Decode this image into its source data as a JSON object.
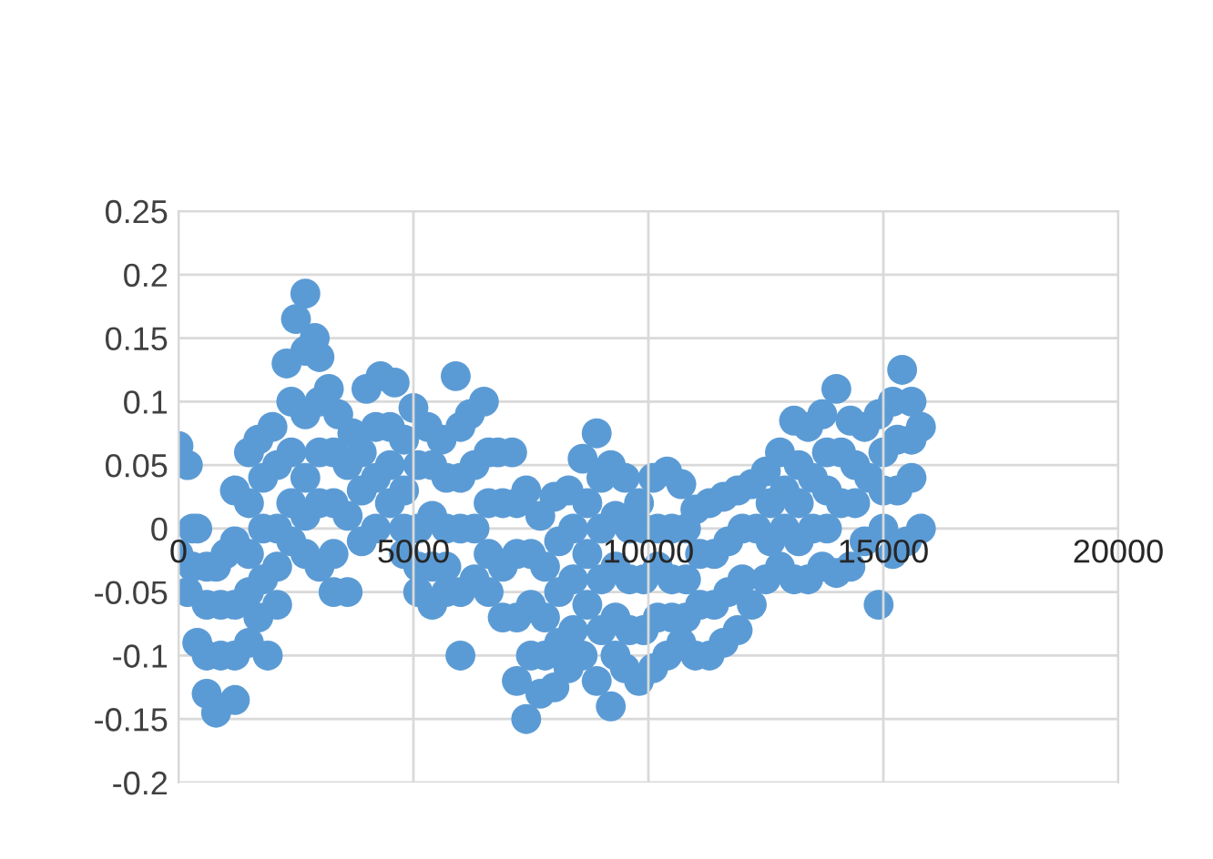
{
  "chart_data": {
    "type": "scatter",
    "xlim": [
      0,
      20000
    ],
    "xticks": [
      0,
      5000,
      10000,
      15000,
      20000
    ],
    "ylim": [
      -0.2,
      0.25
    ],
    "yticks": [
      -0.2,
      -0.15,
      -0.1,
      -0.05,
      0,
      0.05,
      0.1,
      0.15,
      0.2,
      0.25
    ],
    "grid": true,
    "marker": "circle",
    "series": [
      {
        "color": "#5b9bd5",
        "x": [
          0,
          200,
          400,
          600,
          800,
          1000,
          1200,
          1500,
          1700,
          2000,
          2300,
          2500,
          2700,
          2900,
          3000,
          3200,
          3400,
          3700,
          4000,
          4300,
          4600,
          5000,
          5300,
          5600,
          5900,
          6200,
          6500,
          6800,
          7100,
          7400,
          7700,
          8000,
          8300,
          8600,
          8900,
          9200,
          9500,
          9800,
          10100,
          10400,
          10700,
          11000,
          11300,
          11600,
          11900,
          12200,
          12500,
          12800,
          13100,
          13400,
          13700,
          14000,
          14300,
          14600,
          14900,
          15200,
          15400,
          15600,
          15800,
          0,
          200,
          400,
          600,
          800,
          1200,
          1500,
          1700,
          1900,
          2100,
          2400,
          2700,
          3000,
          3300,
          3600,
          3900,
          4200,
          4500,
          4800,
          5100,
          5400,
          5700,
          6000,
          6300,
          6600,
          6900,
          7200,
          7400,
          7700,
          8000,
          8300,
          8600,
          8900,
          9200,
          9500,
          9800,
          10100,
          10400,
          10700,
          11000,
          11300,
          11600,
          11900,
          12200,
          12500,
          12800,
          13100,
          13400,
          13700,
          14000,
          14300,
          14600,
          14900,
          15200,
          15500,
          15800,
          300,
          300,
          900,
          900,
          1500,
          1500,
          1500,
          2100,
          2100,
          2100,
          2700,
          2700,
          2700,
          2700,
          3300,
          3300,
          3300,
          3900,
          3900,
          4500,
          4500,
          5100,
          5100,
          5100,
          5700,
          5700,
          5700,
          6300,
          6300,
          6900,
          6900,
          7500,
          7500,
          7500,
          8100,
          8100,
          8100,
          8700,
          8700,
          8700,
          9300,
          9300,
          9300,
          9300,
          9900,
          9900,
          9900,
          10500,
          10500,
          10500,
          11100,
          11100,
          11700,
          11700,
          12300,
          12900,
          12900,
          13500,
          13500,
          14100,
          14100,
          14700,
          15300,
          15300,
          600,
          600,
          1200,
          1200,
          1200,
          1800,
          1800,
          1800,
          2400,
          2400,
          2400,
          3000,
          3000,
          3000,
          3600,
          3600,
          4200,
          4200,
          4800,
          4800,
          4800,
          5400,
          5400,
          5400,
          6000,
          6000,
          6000,
          6000,
          6600,
          6600,
          6600,
          7200,
          7200,
          7200,
          7800,
          7800,
          7800,
          8400,
          8400,
          8400,
          9000,
          9000,
          9000,
          9000,
          9600,
          9600,
          9600,
          10200,
          10200,
          10200,
          10800,
          10800,
          10800,
          11400,
          11400,
          12000,
          12000,
          12600,
          12600,
          13200,
          13200,
          13200,
          13800,
          13800,
          13800,
          14400,
          14400,
          15000,
          15000,
          15000,
          15600,
          15600
        ],
        "values": [
          0.065,
          0.05,
          0.0,
          -0.03,
          -0.03,
          -0.02,
          0.03,
          0.06,
          0.07,
          0.08,
          0.13,
          0.165,
          0.185,
          0.15,
          0.135,
          0.11,
          0.09,
          0.075,
          0.11,
          0.12,
          0.115,
          0.095,
          0.08,
          0.07,
          0.12,
          0.09,
          0.1,
          0.06,
          0.06,
          0.03,
          0.01,
          0.025,
          0.03,
          0.055,
          0.075,
          0.05,
          0.04,
          0.02,
          0.04,
          0.045,
          0.035,
          0.015,
          0.02,
          0.025,
          0.03,
          0.035,
          0.045,
          0.06,
          0.085,
          0.08,
          0.09,
          0.11,
          0.085,
          0.08,
          0.09,
          0.1,
          0.125,
          0.1,
          0.08,
          -0.02,
          -0.05,
          -0.09,
          -0.13,
          -0.145,
          -0.135,
          -0.09,
          -0.07,
          -0.1,
          -0.06,
          -0.01,
          -0.02,
          -0.03,
          -0.05,
          -0.05,
          -0.01,
          0.0,
          0.02,
          -0.02,
          -0.05,
          -0.06,
          -0.05,
          -0.1,
          -0.04,
          -0.05,
          -0.07,
          -0.12,
          -0.15,
          -0.13,
          -0.125,
          -0.11,
          -0.1,
          -0.12,
          -0.14,
          -0.11,
          -0.12,
          -0.11,
          -0.1,
          -0.09,
          -0.1,
          -0.1,
          -0.09,
          -0.08,
          -0.06,
          -0.04,
          -0.03,
          -0.04,
          -0.04,
          -0.03,
          -0.035,
          -0.03,
          -0.01,
          -0.06,
          -0.02,
          -0.01,
          0.0,
          0.0,
          -0.03,
          -0.06,
          -0.1,
          0.02,
          -0.02,
          -0.05,
          0.05,
          0.0,
          -0.03,
          0.14,
          0.09,
          0.04,
          0.01,
          0.06,
          0.02,
          -0.02,
          0.06,
          0.03,
          0.08,
          0.05,
          0.05,
          0.0,
          -0.03,
          0.04,
          0.0,
          -0.03,
          0.05,
          0.0,
          0.02,
          -0.03,
          -0.02,
          -0.06,
          -0.1,
          -0.01,
          -0.05,
          -0.09,
          0.02,
          -0.02,
          -0.06,
          0.01,
          -0.03,
          -0.07,
          -0.1,
          0.0,
          -0.04,
          -0.08,
          0.0,
          -0.04,
          -0.07,
          -0.02,
          -0.06,
          -0.01,
          -0.05,
          0.0,
          0.03,
          0.0,
          0.04,
          0.0,
          0.06,
          0.02,
          0.04,
          0.07,
          0.03,
          -0.06,
          -0.1,
          -0.01,
          -0.06,
          -0.1,
          0.04,
          0.0,
          -0.04,
          0.1,
          0.06,
          0.02,
          0.1,
          0.06,
          0.02,
          0.05,
          0.01,
          0.08,
          0.04,
          0.07,
          0.03,
          0.0,
          0.05,
          0.01,
          -0.03,
          0.08,
          0.04,
          0.0,
          -0.05,
          0.06,
          0.02,
          -0.02,
          0.02,
          -0.02,
          -0.07,
          -0.03,
          -0.07,
          -0.1,
          0.0,
          -0.04,
          -0.08,
          0.04,
          0.0,
          -0.04,
          -0.08,
          0.0,
          -0.04,
          -0.08,
          0.0,
          -0.03,
          -0.07,
          0.0,
          -0.04,
          -0.07,
          -0.02,
          -0.06,
          0.0,
          -0.04,
          0.02,
          -0.01,
          0.05,
          0.02,
          -0.01,
          0.06,
          0.03,
          0.0,
          0.05,
          0.02,
          0.06,
          0.03,
          0.0,
          0.07,
          0.04
        ]
      }
    ]
  }
}
